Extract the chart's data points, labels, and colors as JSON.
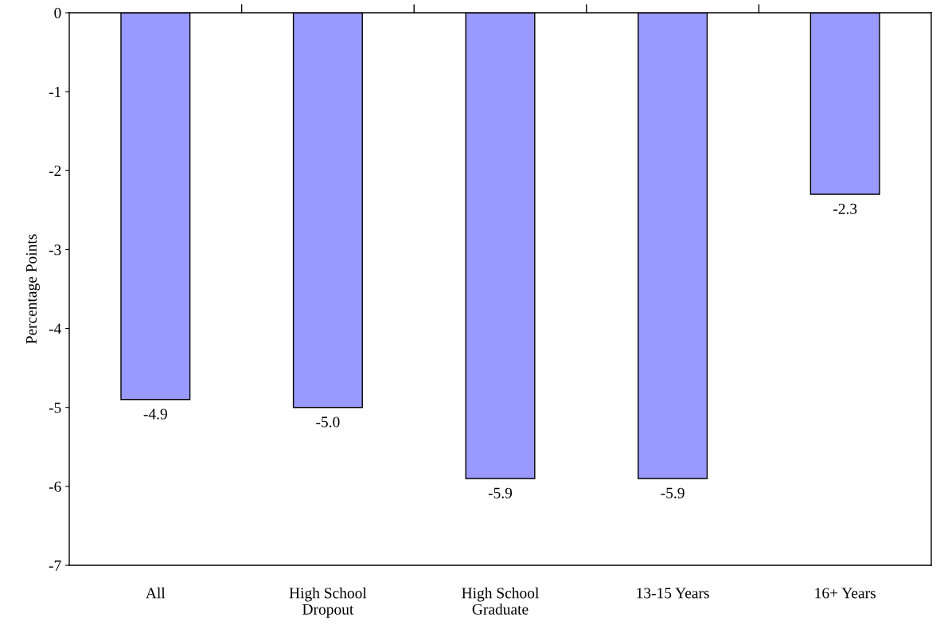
{
  "chart_data": {
    "type": "bar",
    "ylabel": "Percentage Points",
    "categories": [
      "All",
      "High School\nDropout",
      "High School\nGraduate",
      "13-15 Years",
      "16+ Years"
    ],
    "values": [
      -4.9,
      -5.0,
      -5.9,
      -5.9,
      -2.3
    ],
    "value_labels": [
      "-4.9",
      "-5.0",
      "-5.9",
      "-5.9",
      "-2.3"
    ],
    "color": "#9999ff",
    "ylim": [
      -7,
      0
    ],
    "yticks": [
      -7,
      -6,
      -5,
      -4,
      -3,
      -2,
      -1,
      0
    ],
    "grid": false,
    "legend": false
  }
}
